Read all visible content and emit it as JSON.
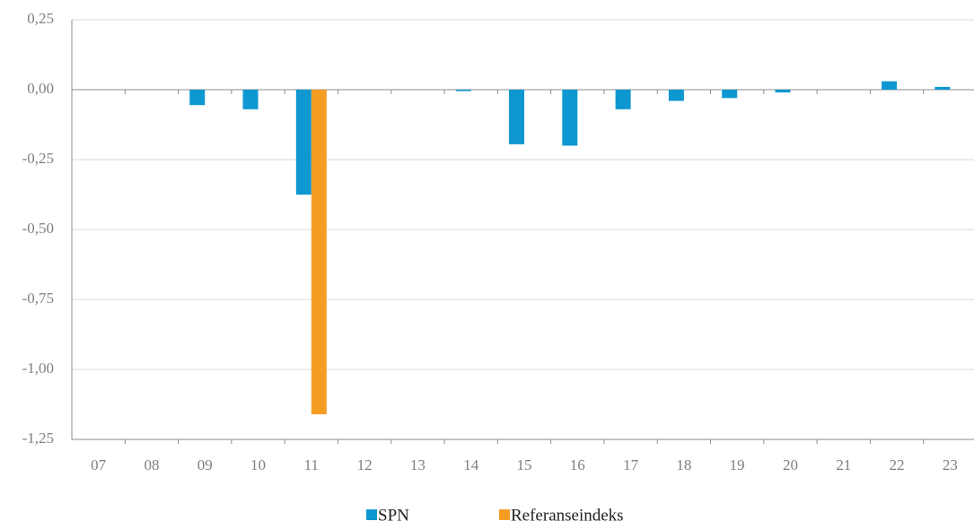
{
  "chart_data": {
    "type": "bar",
    "categories": [
      "07",
      "08",
      "09",
      "10",
      "11",
      "12",
      "13",
      "14",
      "15",
      "16",
      "17",
      "18",
      "19",
      "20",
      "21",
      "22",
      "23"
    ],
    "series": [
      {
        "name": "SPN",
        "color": "#0e97d0",
        "values": [
          0,
          0,
          -0.055,
          -0.07,
          -0.375,
          0,
          0,
          -0.005,
          -0.195,
          -0.2,
          -0.07,
          -0.04,
          -0.03,
          -0.01,
          0,
          0.03,
          0.01
        ]
      },
      {
        "name": "Referanseindeks",
        "color": "#f59c22",
        "values": [
          0,
          0,
          0,
          0,
          -1.16,
          0,
          0,
          0,
          0,
          0,
          0,
          0,
          0,
          0,
          0,
          0,
          0
        ]
      }
    ],
    "ylim": [
      -1.25,
      0.25
    ],
    "yticks": [
      {
        "value": -1.25,
        "label": "-1,25"
      },
      {
        "value": -1,
        "label": "-1,00"
      },
      {
        "value": -0.75,
        "label": "-0,75"
      },
      {
        "value": -0.5,
        "label": "-0,50"
      },
      {
        "value": -0.25,
        "label": "-0,25"
      },
      {
        "value": 0,
        "label": "0,00"
      },
      {
        "value": 0.25,
        "label": "0,25"
      }
    ],
    "grid": true
  }
}
